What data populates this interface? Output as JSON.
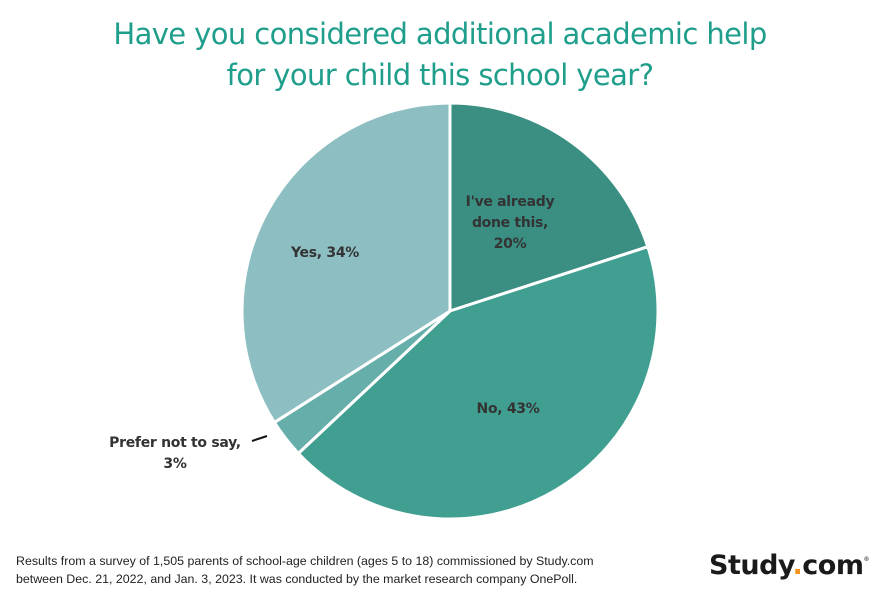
{
  "title": {
    "line1": "Have you considered additional academic help",
    "line2": "for your child this school year?"
  },
  "slices": [
    {
      "label_line1": "I've already",
      "label_line2": "done this,",
      "label_line3": "20%",
      "color": "#3a8f82"
    },
    {
      "label_line1": "No, 43%",
      "color": "#419f92"
    },
    {
      "label_line1": "Prefer not to say,",
      "label_line2": "3%",
      "color": "#66aeaa"
    },
    {
      "label_line1": "Yes, 34%",
      "color": "#8dbfc2"
    }
  ],
  "footnote": {
    "line1": "Results from a survey of 1,505 parents of school-age children (ages 5 to 18) commissioned by Study.com",
    "line2": "between Dec. 21, 2022, and Jan. 3, 2023. It was conducted by the market research company OnePoll."
  },
  "logo": {
    "part1": "Study",
    "dot": ".",
    "part2": "com",
    "trademark": "®"
  },
  "chart_data": {
    "type": "pie",
    "title": "Have you considered additional academic help for your child this school year?",
    "categories": [
      "I've already done this",
      "No",
      "Prefer not to say",
      "Yes"
    ],
    "values": [
      20,
      43,
      3,
      34
    ],
    "unit": "%",
    "start_angle": "12 o'clock",
    "direction": "clockwise",
    "colors": [
      "#3a8f82",
      "#419f92",
      "#66aeaa",
      "#8dbfc2"
    ],
    "legend": "none (inline data labels)",
    "note": "Results from a survey of 1,505 parents of school-age children (ages 5 to 18) commissioned by Study.com between Dec. 21, 2022, and Jan. 3, 2023. It was conducted by the market research company OnePoll."
  }
}
